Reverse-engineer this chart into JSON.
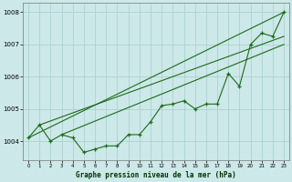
{
  "hours": [
    0,
    1,
    2,
    3,
    4,
    5,
    6,
    7,
    8,
    9,
    10,
    11,
    12,
    13,
    14,
    15,
    16,
    17,
    18,
    19,
    20,
    21,
    22,
    23
  ],
  "pressure_main": [
    1004.1,
    1004.5,
    1004.0,
    1004.2,
    1004.1,
    1003.65,
    1003.75,
    1003.85,
    1003.85,
    1004.2,
    1004.2,
    1004.6,
    1005.1,
    1005.15,
    1005.25,
    1005.0,
    1005.15,
    1005.15,
    1006.1,
    1005.7,
    1007.0,
    1007.35,
    1007.25,
    1008.0
  ],
  "trend_lines": [
    {
      "x0": 0,
      "y0": 1004.1,
      "x1": 23,
      "y1": 1008.0
    },
    {
      "x0": 1,
      "y0": 1004.5,
      "x1": 23,
      "y1": 1007.25
    },
    {
      "x0": 3,
      "y0": 1004.2,
      "x1": 23,
      "y1": 1007.0
    }
  ],
  "ylim": [
    1003.4,
    1008.3
  ],
  "yticks": [
    1004,
    1005,
    1006,
    1007,
    1008
  ],
  "xticks": [
    0,
    1,
    2,
    3,
    4,
    5,
    6,
    7,
    8,
    9,
    10,
    11,
    12,
    13,
    14,
    15,
    16,
    17,
    18,
    19,
    20,
    21,
    22,
    23
  ],
  "xlabel": "Graphe pression niveau de la mer (hPa)",
  "line_color": "#1a6b1a",
  "bg_color": "#cce8e8",
  "grid_color": "#aacccc"
}
